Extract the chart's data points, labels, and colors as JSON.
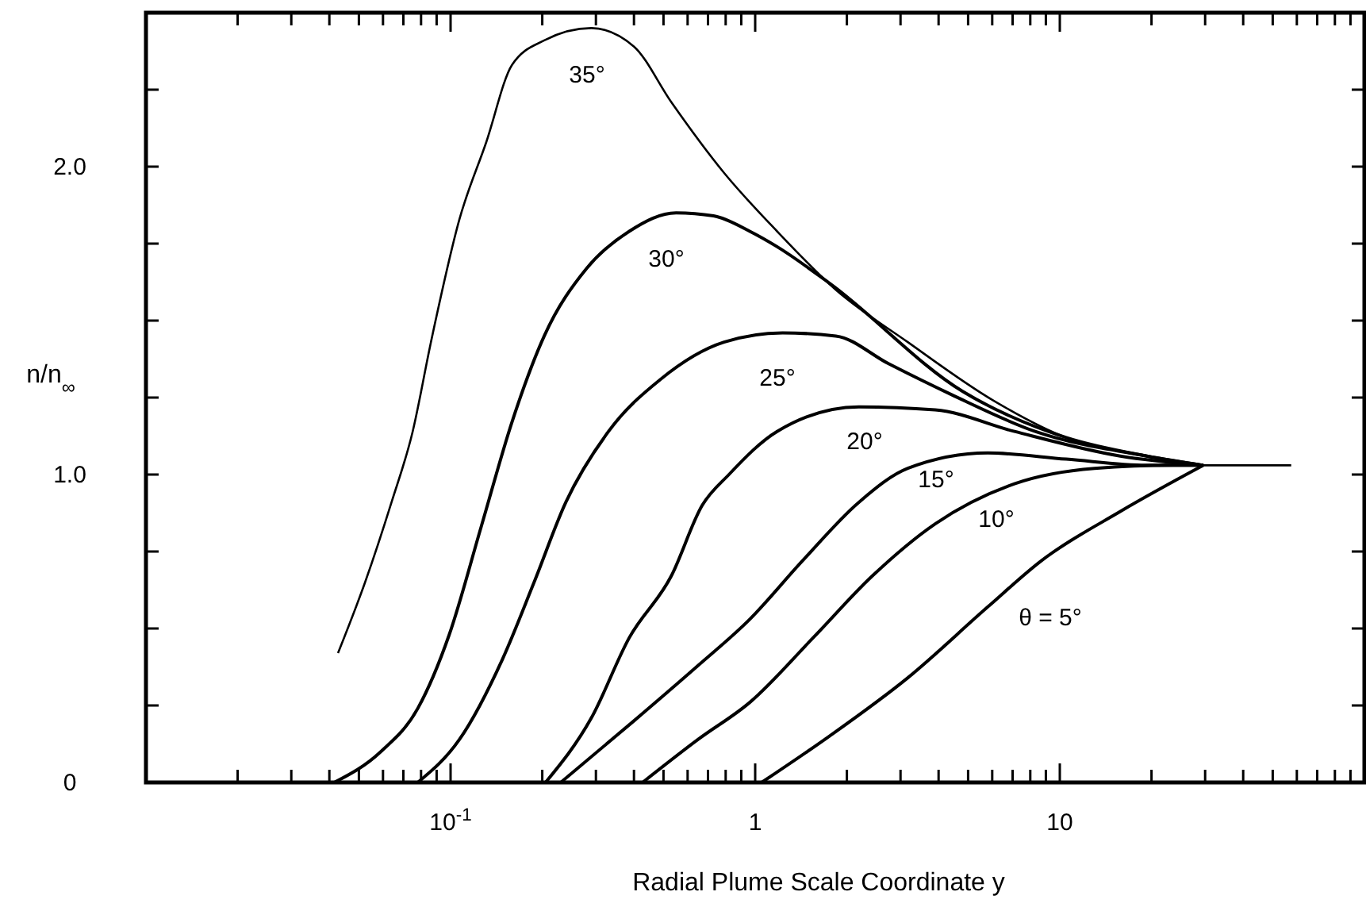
{
  "chart_data": {
    "type": "line",
    "xlabel": "Radial Plume Scale Coordinate  y",
    "ylabel": "n/n$_{∞}$",
    "log": "x",
    "grid": false,
    "marker": "none",
    "line_style": "solid",
    "xlim": [
      0.01,
      100
    ],
    "ylim": [
      0,
      2.5
    ],
    "xticks": [
      {
        "value": 0.02,
        "label": null
      },
      {
        "value": 0.03,
        "label": null
      },
      {
        "value": 0.04,
        "label": null
      },
      {
        "value": 0.05,
        "label": null
      },
      {
        "value": 0.06,
        "label": null
      },
      {
        "value": 0.07,
        "label": null
      },
      {
        "value": 0.08,
        "label": null
      },
      {
        "value": 0.09,
        "label": null
      },
      {
        "value": 0.1,
        "label": "10$^{-1}$"
      },
      {
        "value": 0.2,
        "label": null
      },
      {
        "value": 0.3,
        "label": null
      },
      {
        "value": 0.4,
        "label": null
      },
      {
        "value": 0.5,
        "label": null
      },
      {
        "value": 0.6,
        "label": null
      },
      {
        "value": 0.7,
        "label": null
      },
      {
        "value": 0.8,
        "label": null
      },
      {
        "value": 0.9,
        "label": null
      },
      1,
      {
        "value": 2,
        "label": null
      },
      {
        "value": 3,
        "label": null
      },
      {
        "value": 4,
        "label": null
      },
      {
        "value": 5,
        "label": null
      },
      {
        "value": 6,
        "label": null
      },
      {
        "value": 7,
        "label": null
      },
      {
        "value": 8,
        "label": null
      },
      {
        "value": 9,
        "label": null
      },
      10,
      {
        "value": 20,
        "label": null
      },
      {
        "value": 30,
        "label": null
      },
      {
        "value": 40,
        "label": null
      },
      {
        "value": 50,
        "label": null
      },
      {
        "value": 60,
        "label": null
      },
      {
        "value": 70,
        "label": null
      },
      {
        "value": 80,
        "label": null
      },
      {
        "value": 90,
        "label": null
      }
    ],
    "yticks": [
      0,
      {
        "value": 0.25,
        "label": null
      },
      {
        "value": 0.5,
        "label": null
      },
      {
        "value": 0.75,
        "label": null
      },
      {
        "value": 1,
        "label": "1.0"
      },
      {
        "value": 1.25,
        "label": null
      },
      {
        "value": 1.5,
        "label": null
      },
      {
        "value": 1.75,
        "label": null
      },
      {
        "value": 2,
        "label": "2.0"
      },
      {
        "value": 2.25,
        "label": null
      }
    ],
    "series": [
      {
        "name": "35°",
        "color": "#000000",
        "x": [
          0.0427,
          0.0524,
          0.064,
          0.0751,
          0.0862,
          0.107,
          0.131,
          0.159,
          0.203,
          0.29,
          0.4,
          0.53,
          0.79,
          1.18,
          1.84,
          3.17,
          6.06,
          10.5,
          19.3,
          29.6,
          57.5
        ],
        "values": [
          0.42,
          0.65,
          0.91,
          1.14,
          1.43,
          1.83,
          2.08,
          2.33,
          2.41,
          2.45,
          2.39,
          2.21,
          1.98,
          1.79,
          1.6,
          1.43,
          1.24,
          1.12,
          1.06,
          1.03,
          1.03
        ]
      },
      {
        "name": "30°",
        "color": "#000000",
        "x": [
          0.0415,
          0.059,
          0.078,
          0.099,
          0.126,
          0.159,
          0.203,
          0.28,
          0.386,
          0.55,
          0.73,
          0.96,
          1.18,
          1.76,
          4.8,
          10.5,
          19.3,
          29.6
        ],
        "values": [
          0,
          0.1,
          0.24,
          0.48,
          0.83,
          1.17,
          1.45,
          1.67,
          1.79,
          1.85,
          1.84,
          1.79,
          1.74,
          1.62,
          1.27,
          1.12,
          1.06,
          1.03
        ]
      },
      {
        "name": "25°",
        "color": "#000000",
        "x": [
          0.078,
          0.107,
          0.148,
          0.188,
          0.239,
          0.33,
          0.49,
          0.79,
          1.23,
          1.84,
          2.74,
          4.4,
          8.3,
          19.3,
          29.6
        ],
        "values": [
          0,
          0.14,
          0.4,
          0.65,
          0.91,
          1.14,
          1.31,
          1.43,
          1.46,
          1.45,
          1.36,
          1.26,
          1.14,
          1.06,
          1.03
        ]
      },
      {
        "name": "20°",
        "color": "#000000",
        "x": [
          0.205,
          0.29,
          0.386,
          0.53,
          0.67,
          0.82,
          1.18,
          2.19,
          3.9,
          7.1,
          15.8,
          29.6
        ],
        "values": [
          0,
          0.21,
          0.47,
          0.67,
          0.9,
          1.0,
          1.14,
          1.22,
          1.21,
          1.14,
          1.06,
          1.03
        ]
      },
      {
        "name": "15°",
        "color": "#000000",
        "x": [
          0.23,
          0.4,
          0.65,
          0.96,
          1.43,
          2.19,
          3.17,
          5.8,
          10.5,
          19.3,
          29.6
        ],
        "values": [
          0,
          0.2,
          0.38,
          0.53,
          0.72,
          0.91,
          1.02,
          1.07,
          1.05,
          1.03,
          1.03
        ]
      },
      {
        "name": "10°",
        "color": "#000000",
        "x": [
          0.427,
          0.65,
          0.96,
          1.55,
          2.42,
          3.9,
          7.1,
          13,
          23.6,
          29.6
        ],
        "values": [
          0,
          0.14,
          0.26,
          0.47,
          0.67,
          0.84,
          0.97,
          1.02,
          1.03,
          1.03
        ]
      },
      {
        "name": "θ = 5°",
        "color": "#000000",
        "x": [
          1.05,
          1.75,
          3.17,
          5.8,
          8.7,
          15.8,
          29.6
        ],
        "values": [
          0,
          0.15,
          0.34,
          0.57,
          0.72,
          0.88,
          1.03
        ]
      }
    ]
  }
}
